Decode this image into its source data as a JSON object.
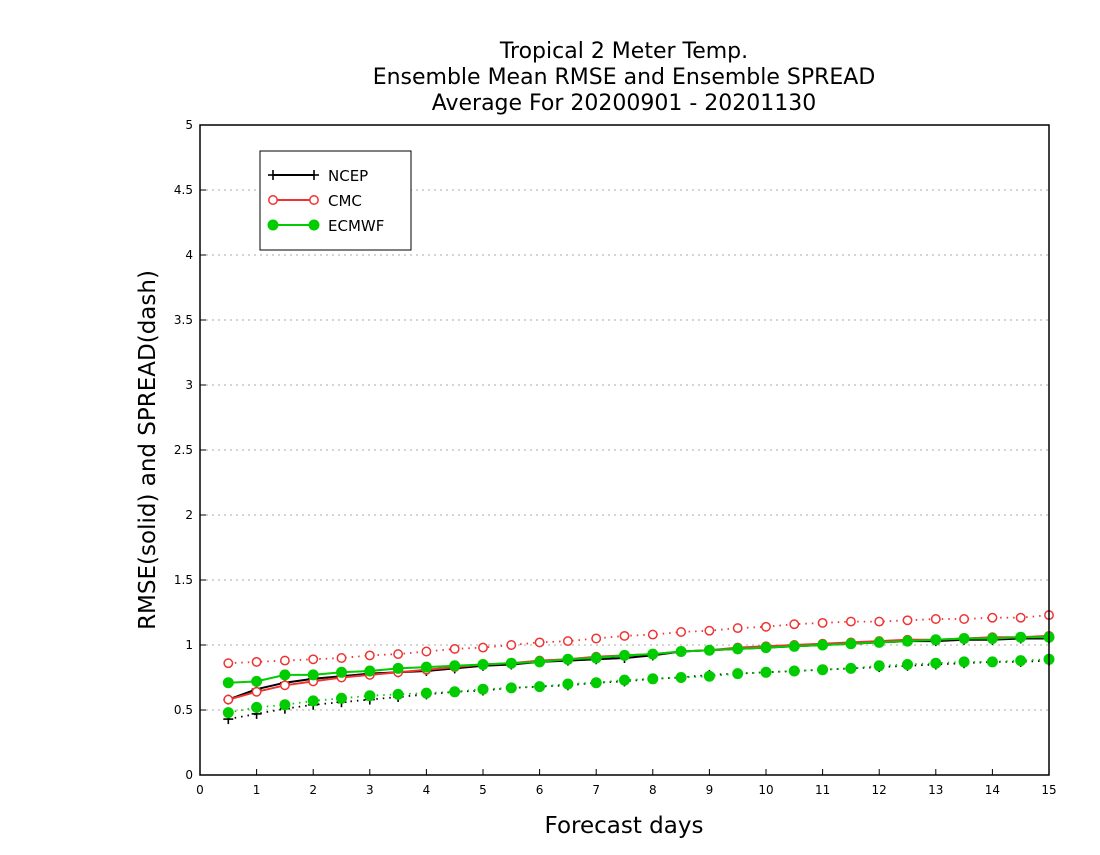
{
  "chart_data": {
    "type": "line",
    "title": [
      "Tropical 2 Meter Temp.",
      "Ensemble Mean RMSE and Ensemble SPREAD",
      "Average For 20200901 - 20201130"
    ],
    "xlabel": "Forecast days",
    "ylabel": "RMSE(solid) and SPREAD(dash)",
    "xlim": [
      0,
      15
    ],
    "ylim": [
      0,
      5
    ],
    "xticks": [
      0,
      1,
      2,
      3,
      4,
      5,
      6,
      7,
      8,
      9,
      10,
      11,
      12,
      13,
      14,
      15
    ],
    "yticks": [
      0,
      0.5,
      1,
      1.5,
      2,
      2.5,
      3,
      3.5,
      4,
      4.5,
      5
    ],
    "ytick_labels": [
      "0",
      "0.5",
      "1",
      "1.5",
      "2",
      "2.5",
      "3",
      "3.5",
      "4",
      "4.5",
      "5"
    ],
    "grid": "horizontal dotted",
    "legend_position": "top-left",
    "x": [
      0.5,
      1,
      1.5,
      2,
      2.5,
      3,
      3.5,
      4,
      4.5,
      5,
      5.5,
      6,
      6.5,
      7,
      7.5,
      8,
      8.5,
      9,
      9.5,
      10,
      10.5,
      11,
      11.5,
      12,
      12.5,
      13,
      13.5,
      14,
      14.5,
      15
    ],
    "series": [
      {
        "name": "NCEP",
        "color": "#000000",
        "marker": "plus",
        "rmse": [
          0.58,
          0.66,
          0.71,
          0.74,
          0.76,
          0.78,
          0.79,
          0.8,
          0.82,
          0.84,
          0.85,
          0.87,
          0.88,
          0.89,
          0.9,
          0.92,
          0.95,
          0.96,
          0.97,
          0.98,
          0.99,
          1.0,
          1.01,
          1.02,
          1.03,
          1.03,
          1.04,
          1.04,
          1.05,
          1.05
        ],
        "spread": [
          0.43,
          0.47,
          0.51,
          0.54,
          0.56,
          0.58,
          0.6,
          0.62,
          0.64,
          0.65,
          0.67,
          0.68,
          0.69,
          0.71,
          0.72,
          0.74,
          0.75,
          0.77,
          0.78,
          0.79,
          0.8,
          0.81,
          0.82,
          0.83,
          0.84,
          0.85,
          0.86,
          0.87,
          0.87,
          0.88
        ]
      },
      {
        "name": "CMC",
        "color": "#ee3333",
        "marker": "open-circle",
        "rmse": [
          0.58,
          0.64,
          0.69,
          0.72,
          0.75,
          0.77,
          0.79,
          0.81,
          0.83,
          0.85,
          0.86,
          0.88,
          0.89,
          0.91,
          0.92,
          0.93,
          0.95,
          0.96,
          0.98,
          0.99,
          1.0,
          1.01,
          1.02,
          1.03,
          1.04,
          1.04,
          1.05,
          1.06,
          1.06,
          1.07
        ],
        "spread": [
          0.86,
          0.87,
          0.88,
          0.89,
          0.9,
          0.92,
          0.93,
          0.95,
          0.97,
          0.98,
          1.0,
          1.02,
          1.03,
          1.05,
          1.07,
          1.08,
          1.1,
          1.11,
          1.13,
          1.14,
          1.16,
          1.17,
          1.18,
          1.18,
          1.19,
          1.2,
          1.2,
          1.21,
          1.21,
          1.23
        ]
      },
      {
        "name": "ECMWF",
        "color": "#00cc00",
        "marker": "filled-circle",
        "rmse": [
          0.71,
          0.72,
          0.77,
          0.77,
          0.79,
          0.8,
          0.82,
          0.83,
          0.84,
          0.85,
          0.86,
          0.87,
          0.89,
          0.9,
          0.92,
          0.93,
          0.95,
          0.96,
          0.97,
          0.98,
          0.99,
          1.0,
          1.01,
          1.02,
          1.03,
          1.04,
          1.05,
          1.05,
          1.06,
          1.06
        ],
        "spread": [
          0.48,
          0.52,
          0.54,
          0.57,
          0.59,
          0.61,
          0.62,
          0.63,
          0.64,
          0.66,
          0.67,
          0.68,
          0.7,
          0.71,
          0.73,
          0.74,
          0.75,
          0.76,
          0.78,
          0.79,
          0.8,
          0.81,
          0.82,
          0.84,
          0.85,
          0.86,
          0.87,
          0.87,
          0.88,
          0.89
        ]
      }
    ]
  }
}
